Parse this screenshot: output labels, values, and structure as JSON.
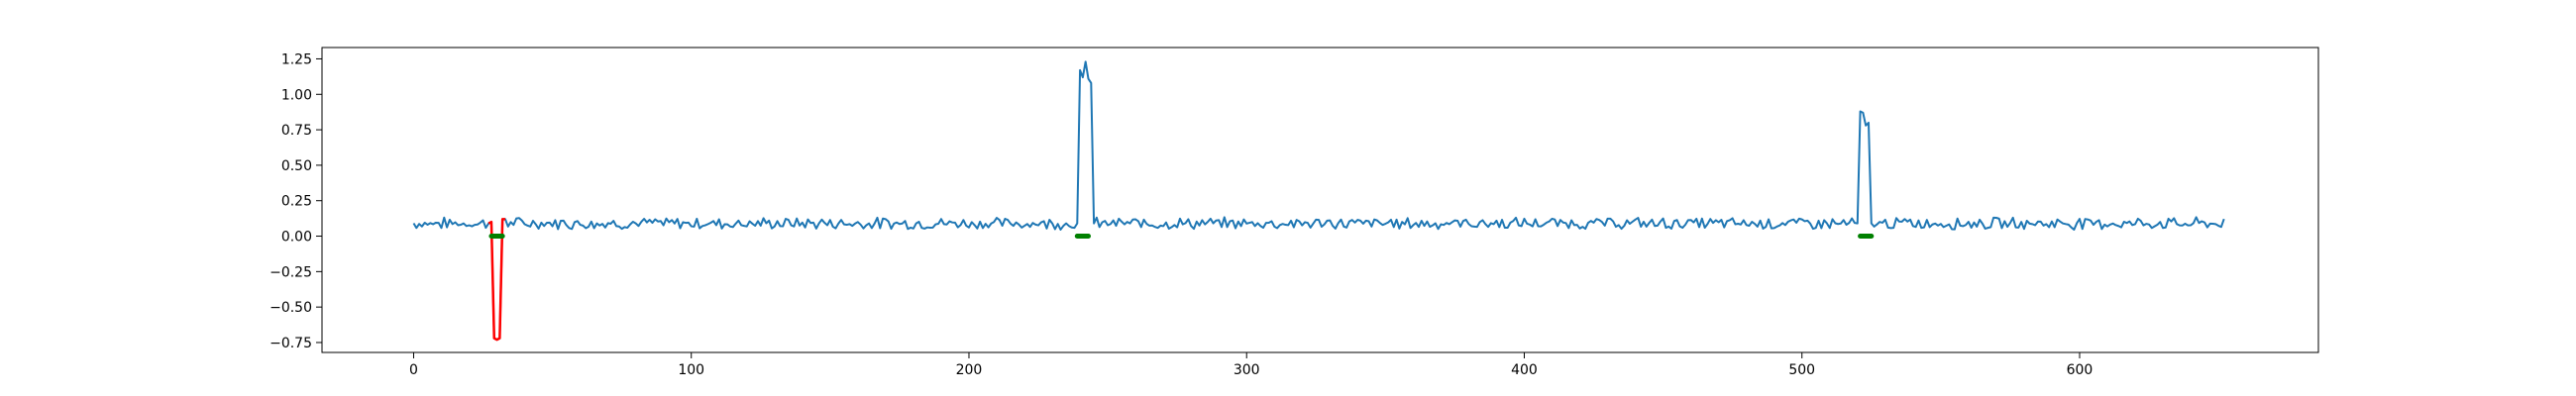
{
  "chart_data": {
    "type": "line",
    "title": "",
    "xlabel": "",
    "ylabel": "",
    "xlim": [
      -33,
      686
    ],
    "ylim": [
      -0.82,
      1.33
    ],
    "x_ticks": [
      0,
      100,
      200,
      300,
      400,
      500,
      600
    ],
    "x_tick_labels": [
      "0",
      "100",
      "200",
      "300",
      "400",
      "500",
      "600"
    ],
    "y_ticks": [
      1.25,
      1.0,
      0.75,
      0.5,
      0.25,
      0.0,
      -0.25,
      -0.5,
      -0.75
    ],
    "y_tick_labels": [
      "1.25",
      "1.00",
      "0.75",
      "0.50",
      "0.25",
      "0.00",
      "−0.25",
      "−0.50",
      "−0.75"
    ],
    "grid": false,
    "baseline": 0.09,
    "noise_amplitude": 0.035,
    "n_points": 653,
    "series": [
      {
        "color": "#1f77b4",
        "style": "line",
        "segments": [
          {
            "x": [
              239,
              240,
              241,
              242,
              243,
              244,
              245
            ],
            "y": [
              0.09,
              1.17,
              1.12,
              1.23,
              1.11,
              1.08,
              0.09
            ]
          },
          {
            "x": [
              520,
              521,
              522,
              523,
              524,
              525
            ],
            "y": [
              0.09,
              0.88,
              0.87,
              0.78,
              0.8,
              0.09
            ]
          }
        ]
      },
      {
        "color": "#ff0000",
        "style": "line",
        "x": [
          27,
          28,
          29,
          30,
          31,
          32,
          33
        ],
        "y": [
          0.09,
          0.1,
          -0.72,
          -0.73,
          -0.72,
          0.12,
          0.12
        ]
      },
      {
        "color": "#008000",
        "style": "thick-marker",
        "segments": [
          {
            "x": [
              28,
              32
            ],
            "y": [
              0.0,
              0.0
            ]
          },
          {
            "x": [
              239,
              243
            ],
            "y": [
              0.0,
              0.0
            ]
          },
          {
            "x": [
              521,
              525
            ],
            "y": [
              0.0,
              0.0
            ]
          }
        ]
      }
    ]
  }
}
